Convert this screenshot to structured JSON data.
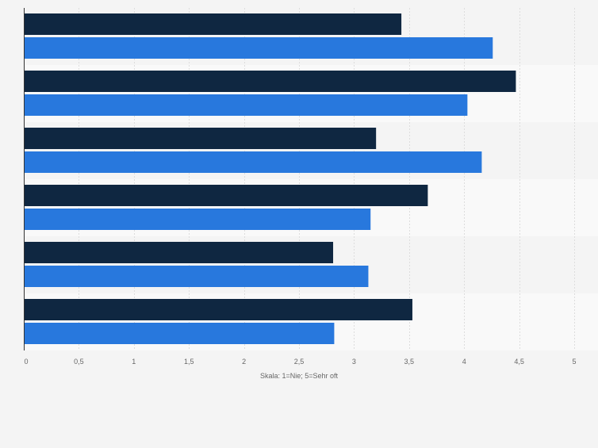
{
  "chart_data": {
    "type": "bar",
    "orientation": "horizontal",
    "categories": [
      "",
      "",
      "",
      "",
      "",
      ""
    ],
    "series": [
      {
        "values": [
          3.43,
          4.47,
          3.2,
          3.67,
          2.81,
          3.53
        ],
        "color": "#0f2741"
      },
      {
        "values": [
          4.26,
          4.03,
          4.16,
          3.15,
          3.13,
          2.82
        ],
        "color": "#2878dd"
      }
    ],
    "xlabel": "Skala: 1=Nie; 5=Sehr oft",
    "ylabel": "",
    "xlim": [
      0,
      5
    ],
    "x_ticks": [
      {
        "value": 0,
        "label": "0"
      },
      {
        "value": 0.5,
        "label": "0,5"
      },
      {
        "value": 1,
        "label": "1"
      },
      {
        "value": 1.5,
        "label": "1,5"
      },
      {
        "value": 2,
        "label": "2"
      },
      {
        "value": 2.5,
        "label": "2,5"
      },
      {
        "value": 3,
        "label": "3"
      },
      {
        "value": 3.5,
        "label": "3,5"
      },
      {
        "value": 4,
        "label": "4"
      },
      {
        "value": 4.5,
        "label": "4,5"
      },
      {
        "value": 5,
        "label": "5"
      }
    ],
    "grid": true,
    "legend": "none",
    "colors": {
      "background": "#f4f4f4",
      "band_alt": "#f9f9f9",
      "grid": "#dddddd",
      "axis": "#333333",
      "tick_text": "#666666"
    }
  }
}
